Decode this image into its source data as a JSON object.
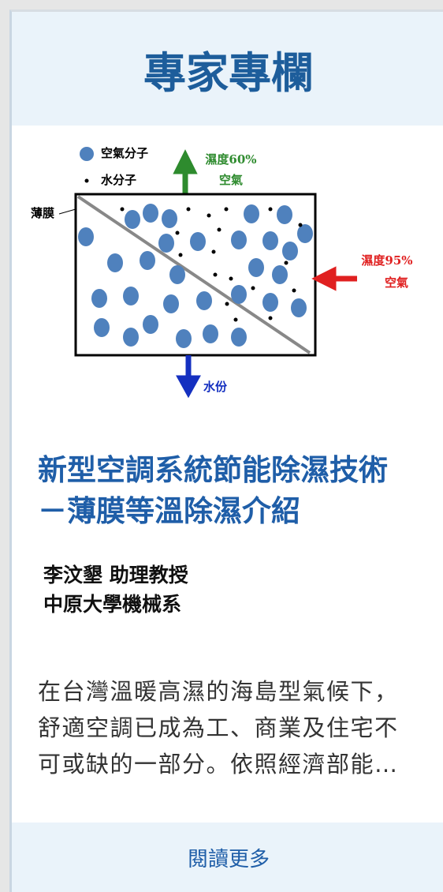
{
  "header": {
    "title": "專家專欄"
  },
  "figure": {
    "legend_air": "空氣分子",
    "legend_water": "水分子",
    "top_label_1": "濕度60%",
    "top_label_2": "空氣",
    "membrane": "薄膜",
    "right_label_1": "濕度95%",
    "right_label_2": "空氣",
    "bottom_label": "水份"
  },
  "article": {
    "title_lines": [
      "新型空調系統節能除濕技術",
      "－薄膜等溫除濕介紹"
    ],
    "author": "李汶墾 助理教授",
    "affiliation": "中原大學機械系",
    "excerpt_lines": [
      "在台灣溫暖高濕的海島型氣候下，",
      "舒適空調已成為工、商業及住宅不",
      "可或缺的一部分。依照經濟部能…"
    ]
  },
  "footer": {
    "link": "閱讀更多"
  }
}
